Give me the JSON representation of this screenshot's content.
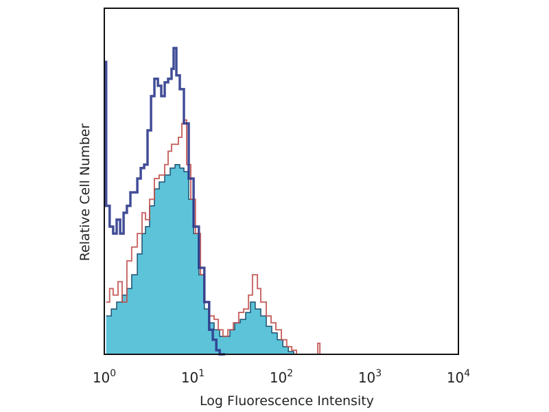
{
  "chart_data": {
    "type": "area",
    "title": "",
    "xlabel": "Log Fluorescence Intensity",
    "ylabel": "Relative Cell Number",
    "xscale": "log",
    "xlim": [
      1,
      10000
    ],
    "ylim": [
      0,
      100
    ],
    "grid": false,
    "legend": "none",
    "xticks": [
      {
        "base": "10",
        "exp": "0"
      },
      {
        "base": "10",
        "exp": "1"
      },
      {
        "base": "10",
        "exp": "2"
      },
      {
        "base": "10",
        "exp": "3"
      },
      {
        "base": "10",
        "exp": "4"
      }
    ],
    "series": [
      {
        "style": "filled",
        "color": "#5cc3d9",
        "outline": "#1d4f6e",
        "points": [
          [
            1.05,
            11.1
          ],
          [
            1.2,
            13.1
          ],
          [
            1.38,
            15.1
          ],
          [
            1.59,
            17.1
          ],
          [
            1.8,
            19.0
          ],
          [
            2.04,
            23.0
          ],
          [
            2.36,
            29.0
          ],
          [
            2.67,
            34.9
          ],
          [
            2.92,
            36.9
          ],
          [
            3.25,
            42.9
          ],
          [
            3.68,
            47.8
          ],
          [
            4.17,
            49.8
          ],
          [
            4.81,
            51.8
          ],
          [
            5.55,
            53.8
          ],
          [
            6.29,
            54.8
          ],
          [
            7.12,
            53.8
          ],
          [
            7.93,
            52.8
          ],
          [
            8.98,
            44.8
          ],
          [
            10.2,
            34.9
          ],
          [
            11.7,
            23.0
          ],
          [
            13.5,
            13.1
          ],
          [
            15.3,
            9.1
          ],
          [
            17.4,
            7.1
          ],
          [
            20.1,
            5.2
          ],
          [
            23.1,
            5.2
          ],
          [
            26.2,
            7.1
          ],
          [
            29.7,
            9.1
          ],
          [
            34.3,
            10.1
          ],
          [
            39.5,
            12.1
          ],
          [
            44.8,
            15.1
          ],
          [
            50.7,
            13.1
          ],
          [
            58.5,
            11.1
          ],
          [
            67.5,
            8.1
          ],
          [
            77.9,
            6.2
          ],
          [
            89.9,
            4.2
          ],
          [
            104,
            2.2
          ],
          [
            120,
            0.8
          ],
          [
            138,
            0
          ]
        ]
      },
      {
        "style": "line",
        "color": "#c0504d",
        "points": [
          [
            1.05,
            15.1
          ],
          [
            1.15,
            19.0
          ],
          [
            1.26,
            17.1
          ],
          [
            1.43,
            21.0
          ],
          [
            1.59,
            15.1
          ],
          [
            1.8,
            27.0
          ],
          [
            2.04,
            31.0
          ],
          [
            2.36,
            34.9
          ],
          [
            2.67,
            40.9
          ],
          [
            2.92,
            38.9
          ],
          [
            3.25,
            44.8
          ],
          [
            3.68,
            50.8
          ],
          [
            4.17,
            51.8
          ],
          [
            4.81,
            54.8
          ],
          [
            5.26,
            58.7
          ],
          [
            5.75,
            60.7
          ],
          [
            6.29,
            60.7
          ],
          [
            6.87,
            62.7
          ],
          [
            7.52,
            66.7
          ],
          [
            7.93,
            67.7
          ],
          [
            8.51,
            54.8
          ],
          [
            9.48,
            44.8
          ],
          [
            10.7,
            34.9
          ],
          [
            12.2,
            23.0
          ],
          [
            13.5,
            15.1
          ],
          [
            15.3,
            11.1
          ],
          [
            17.4,
            10.1
          ],
          [
            19.4,
            7.1
          ],
          [
            21.9,
            5.2
          ],
          [
            24.9,
            7.1
          ],
          [
            28.7,
            9.1
          ],
          [
            33.0,
            12.1
          ],
          [
            37.5,
            13.1
          ],
          [
            42.5,
            17.1
          ],
          [
            47.2,
            23.0
          ],
          [
            53.6,
            19.0
          ],
          [
            58.5,
            15.1
          ],
          [
            67.5,
            11.1
          ],
          [
            76.5,
            9.1
          ],
          [
            86.7,
            7.1
          ],
          [
            100,
            4.2
          ],
          [
            115,
            2.2
          ],
          [
            131,
            1.2
          ],
          [
            148,
            0
          ],
          [
            244,
            0
          ],
          [
            258,
            3.2
          ],
          [
            272,
            0
          ]
        ]
      },
      {
        "style": "line",
        "color": "#2d3a8c",
        "points": [
          [
            1,
            84.5
          ],
          [
            1.05,
            42.9
          ],
          [
            1.15,
            36.9
          ],
          [
            1.26,
            34.9
          ],
          [
            1.38,
            38.9
          ],
          [
            1.51,
            34.9
          ],
          [
            1.65,
            40.9
          ],
          [
            1.8,
            42.9
          ],
          [
            1.97,
            46.8
          ],
          [
            2.36,
            50.8
          ],
          [
            2.58,
            53.8
          ],
          [
            2.82,
            54.8
          ],
          [
            3.08,
            64.7
          ],
          [
            3.37,
            74.6
          ],
          [
            3.68,
            79.6
          ],
          [
            4.03,
            77.6
          ],
          [
            4.4,
            74.6
          ],
          [
            4.81,
            78.6
          ],
          [
            5.26,
            79.6
          ],
          [
            5.75,
            82.5
          ],
          [
            6.07,
            88.5
          ],
          [
            6.51,
            80.6
          ],
          [
            7.12,
            76.6
          ],
          [
            7.93,
            66.7
          ],
          [
            8.98,
            50.8
          ],
          [
            10.2,
            36.9
          ],
          [
            11.7,
            25.0
          ],
          [
            13.5,
            15.1
          ],
          [
            15.3,
            7.1
          ],
          [
            16.8,
            4.2
          ],
          [
            18.4,
            1.2
          ],
          [
            20.1,
            0
          ],
          [
            23.1,
            0
          ]
        ]
      }
    ]
  }
}
